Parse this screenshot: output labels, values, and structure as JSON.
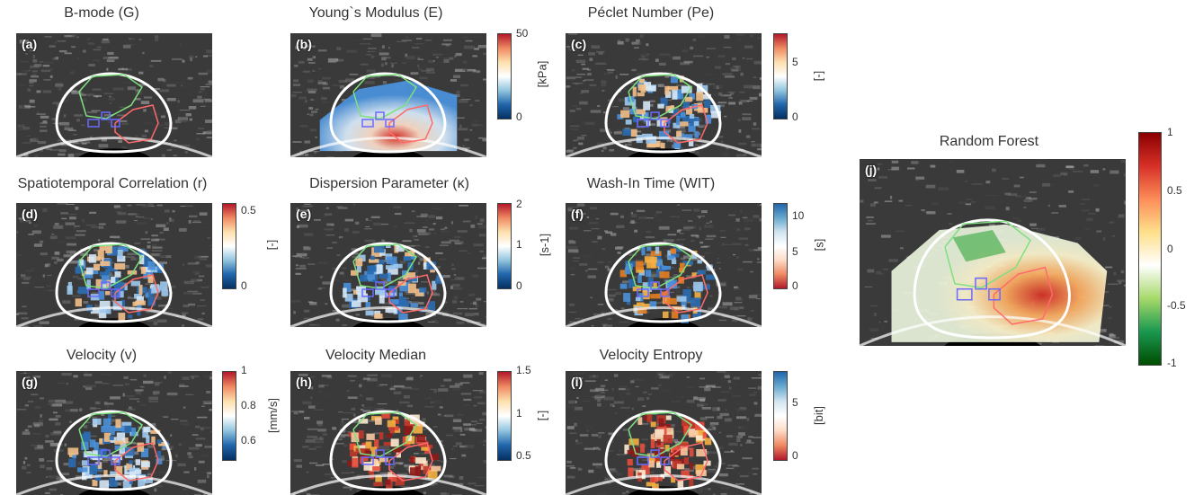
{
  "panels": [
    {
      "letter": "(a)",
      "title": "B-mode (G)",
      "overlay": "none"
    },
    {
      "letter": "(b)",
      "title": "Young`s Modulus (E)",
      "overlay": "elastic",
      "cbar": {
        "ticks": [
          "50",
          "0"
        ],
        "unit": "[kPa]",
        "scheme": "red-blue"
      }
    },
    {
      "letter": "(c)",
      "title": "Péclet Number (Pe)",
      "overlay": "blobs-blue",
      "cbar": {
        "ticks": [
          "5",
          "0"
        ],
        "unit": "[-]",
        "scheme": "red-blue"
      }
    },
    {
      "letter": "(d)",
      "title": "Spatiotemporal Correlation (r)",
      "overlay": "blobs-blue",
      "cbar": {
        "ticks": [
          "0.5",
          "0"
        ],
        "unit": "[-]",
        "scheme": "red-blue"
      }
    },
    {
      "letter": "(e)",
      "title": "Dispersion Parameter (κ)",
      "overlay": "blobs-blue",
      "cbar": {
        "ticks": [
          "2",
          "1",
          "0"
        ],
        "unit": "[s-1]",
        "scheme": "red-blue"
      }
    },
    {
      "letter": "(f)",
      "title": "Wash-In Time (WIT)",
      "overlay": "blobs-mixed",
      "cbar": {
        "ticks": [
          "10",
          "5",
          "0"
        ],
        "unit": "[s]",
        "scheme": "blue-red"
      }
    },
    {
      "letter": "(g)",
      "title": "Velocity (v)",
      "overlay": "blobs-blue",
      "cbar": {
        "ticks": [
          "1",
          "0.8",
          "0.6"
        ],
        "unit": "[mm/s]",
        "scheme": "red-blue"
      }
    },
    {
      "letter": "(h)",
      "title": "Velocity Median",
      "overlay": "blobs-red",
      "cbar": {
        "ticks": [
          "1.5",
          "1",
          "0.5"
        ],
        "unit": "[-]",
        "scheme": "red-blue"
      }
    },
    {
      "letter": "(i)",
      "title": "Velocity Entropy",
      "overlay": "blobs-red",
      "cbar": {
        "ticks": [
          "5",
          "0"
        ],
        "unit": "[bit]",
        "scheme": "blue-red"
      }
    }
  ],
  "random_forest": {
    "letter": "(j)",
    "title": "Random Forest",
    "cbar": {
      "ticks": [
        "1",
        "0.5",
        "0",
        "-0.5",
        "-1"
      ],
      "scheme": "red-green"
    }
  },
  "colors": {
    "contour_outer": "#ffffff",
    "contour_green": "#7fe07f",
    "contour_red": "#ff6a6a",
    "roi_blue": "#6a6aff"
  }
}
